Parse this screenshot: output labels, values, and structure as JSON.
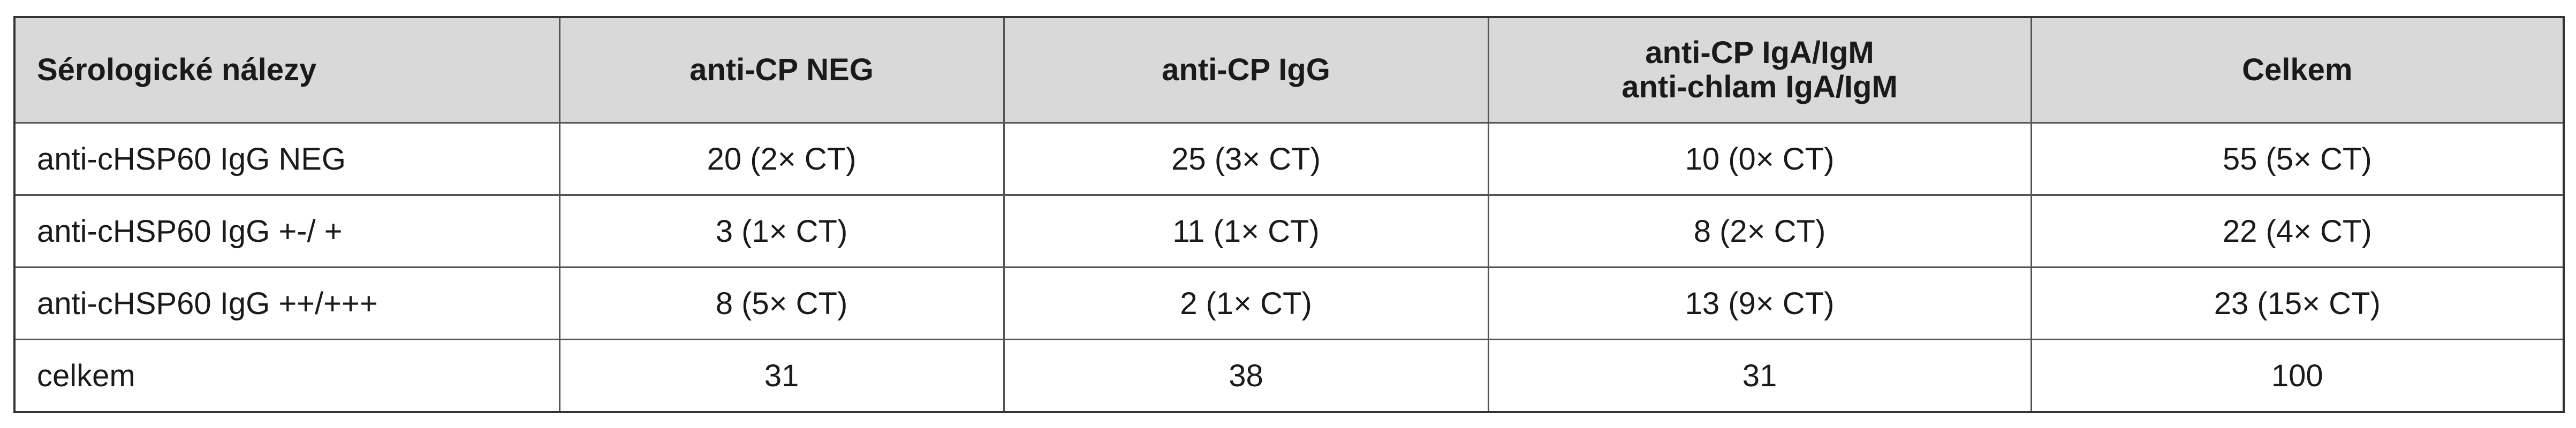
{
  "table": {
    "header": [
      "Sérologické nálezy",
      "anti-CP NEG",
      "anti-CP IgG",
      [
        "anti-CP IgA/IgM",
        "anti-chlam IgA/IgM"
      ],
      "Celkem"
    ],
    "rows": [
      [
        "anti-cHSP60 IgG NEG",
        "20 (2× CT)",
        "25 (3× CT)",
        "10 (0× CT)",
        "55 (5× CT)"
      ],
      [
        "anti-cHSP60 IgG +-/ +",
        "3 (1× CT)",
        "11 (1× CT)",
        "8 (2× CT)",
        "22 (4× CT)"
      ],
      [
        "anti-cHSP60 IgG ++/+++",
        "8 (5× CT)",
        "2 (1× CT)",
        "13 (9× CT)",
        "23 (15× CT)"
      ],
      [
        "celkem",
        "31",
        "38",
        "31",
        "100"
      ]
    ]
  }
}
